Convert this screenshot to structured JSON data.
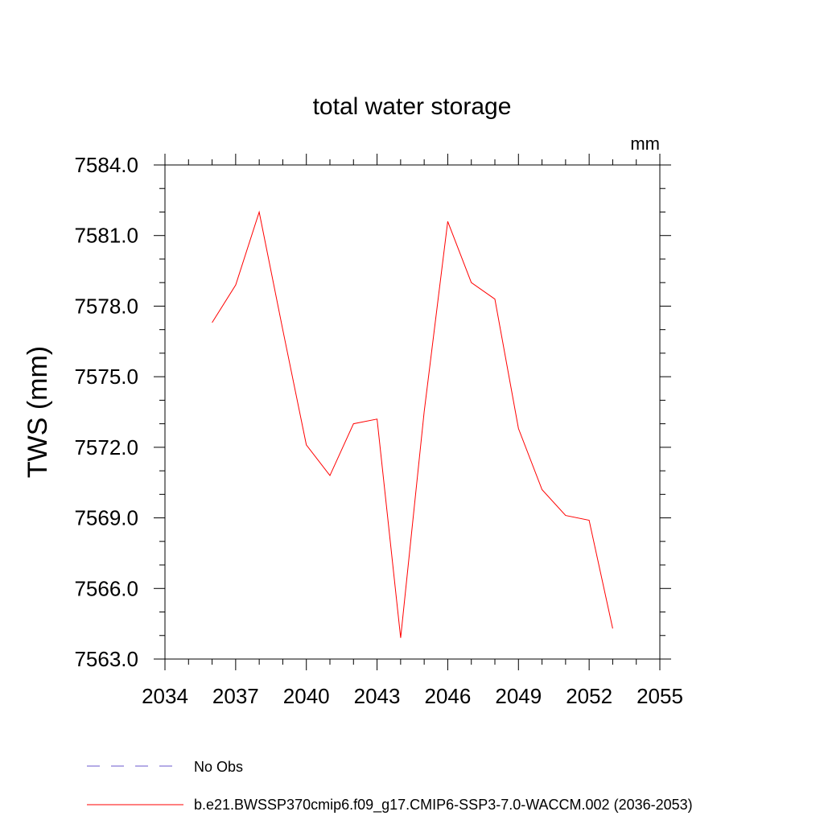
{
  "chart_data": {
    "type": "line",
    "title": "total water storage",
    "units": "mm",
    "ylabel": "TWS  (mm)",
    "xlabel": "",
    "xlim": [
      2034,
      2055
    ],
    "ylim": [
      7563.0,
      7584.0
    ],
    "xticks": [
      "2034",
      "2037",
      "2040",
      "2043",
      "2046",
      "2049",
      "2052",
      "2055"
    ],
    "yticks": [
      "7563.0",
      "7566.0",
      "7569.0",
      "7572.0",
      "7575.0",
      "7578.0",
      "7581.0",
      "7584.0"
    ],
    "series": [
      {
        "name": "b.e21.BWSSP370cmip6.f09_g17.CMIP6-SSP3-7.0-WACCM.002 (2036-2053)",
        "color": "#ff0000",
        "style": "solid",
        "x": [
          2036,
          2037,
          2038,
          2039,
          2040,
          2041,
          2042,
          2043,
          2044,
          2045,
          2046,
          2047,
          2048,
          2049,
          2050,
          2051,
          2052,
          2053
        ],
        "y": [
          7577.3,
          7578.9,
          7582.0,
          7577.0,
          7572.1,
          7570.8,
          7573.0,
          7573.2,
          7563.9,
          7573.5,
          7581.6,
          7579.0,
          7578.3,
          7572.8,
          7570.2,
          7569.1,
          7568.9,
          7564.3
        ]
      }
    ],
    "legend": [
      {
        "label": "No Obs",
        "color": "#6a5acd",
        "style": "dashed"
      },
      {
        "label": "b.e21.BWSSP370cmip6.f09_g17.CMIP6-SSP3-7.0-WACCM.002 (2036-2053)",
        "color": "#ff0000",
        "style": "solid"
      }
    ],
    "legend_position": "bottom"
  }
}
